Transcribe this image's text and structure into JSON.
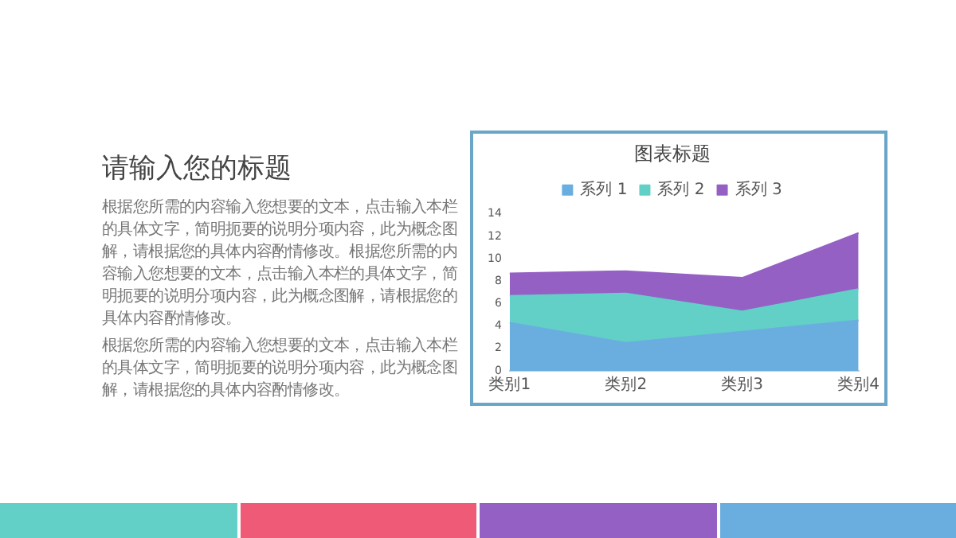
{
  "chart_data": {
    "type": "area",
    "title": "图表标题",
    "stacked": true,
    "categories": [
      "类别1",
      "类别2",
      "类别3",
      "类别4"
    ],
    "series": [
      {
        "name": "系列 1",
        "color": "#6aaee0",
        "values": [
          4.3,
          2.5,
          3.5,
          4.5
        ]
      },
      {
        "name": "系列 2",
        "color": "#62d0c6",
        "values": [
          2.4,
          4.4,
          1.8,
          2.8
        ]
      },
      {
        "name": "系列 3",
        "color": "#9560c4",
        "values": [
          2,
          2,
          3,
          5
        ]
      }
    ],
    "ylim": [
      0,
      14
    ],
    "yticks": [
      0,
      2,
      4,
      6,
      8,
      10,
      12,
      14
    ],
    "grid": false,
    "legend": "top",
    "marker": "none",
    "annotations": [
      "请输入您的标题",
      "根据您所需的内容输入您想要的文本，点击输入本栏的具体文字，简明扼要的说明分项内容，此为概念图解，请根据您的具体内容酌情修改。根据您所需的内容输入您想要的文本，点击输入本栏的具体文字，简明扼要的说明分项内容，此为概念图解，请根据您的具体内容酌情修改。",
      "根据您所需的内容输入您想要的文本，点击输入本栏的具体文字，简明扼要的说明分项内容，此为概念图解，请根据您的具体内容酌情修改。"
    ]
  }
}
